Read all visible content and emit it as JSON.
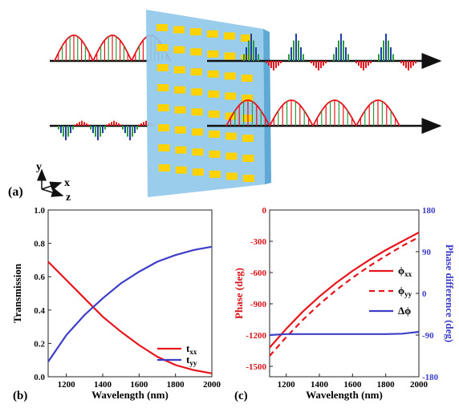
{
  "panel_a": {
    "label": "(a)",
    "axes": {
      "y": "y",
      "x": "x",
      "z": "z"
    },
    "colors": {
      "panel": "#8fc8ea",
      "block": "#ffd200",
      "red": "#e8141b",
      "green": "#2a9c3c",
      "blue": "#1f3ea6",
      "arrow": "#111111"
    }
  },
  "chart_data": [
    {
      "type": "line",
      "panel_label": "(b)",
      "xlabel": "Wavelength (nm)",
      "ylabel": "Transmission",
      "xlim": [
        1100,
        2000
      ],
      "ylim": [
        0.0,
        1.0
      ],
      "xticks": [
        "1200",
        "1400",
        "1600",
        "1800",
        "2000"
      ],
      "yticks": [
        "0.0",
        "0.2",
        "0.4",
        "0.6",
        "0.8",
        "1.0"
      ],
      "legend": {
        "placement": "bottom-right",
        "labels": [
          "t",
          "t"
        ],
        "subscripts": [
          "xx",
          "yy"
        ]
      },
      "x": [
        1100,
        1200,
        1300,
        1400,
        1500,
        1600,
        1700,
        1800,
        1900,
        2000
      ],
      "series": [
        {
          "color": "#e8141b",
          "values": [
            0.69,
            0.58,
            0.47,
            0.36,
            0.27,
            0.19,
            0.12,
            0.07,
            0.04,
            0.02
          ]
        },
        {
          "color": "#3d3dc8",
          "values": [
            0.09,
            0.25,
            0.37,
            0.47,
            0.56,
            0.63,
            0.69,
            0.73,
            0.76,
            0.78
          ]
        }
      ]
    },
    {
      "type": "line",
      "panel_label": "(c)",
      "xlabel": "Wavelength (nm)",
      "ylabel": "Phase (deg)",
      "y2label": "Phase difference (deg)",
      "xlim": [
        1100,
        2000
      ],
      "ylim": [
        -1600,
        0
      ],
      "y2lim": [
        -180,
        180
      ],
      "xticks": [
        "1200",
        "1400",
        "1600",
        "1800",
        "2000"
      ],
      "yticks": [
        "0",
        "-300",
        "-600",
        "-900",
        "-1200",
        "-1500"
      ],
      "y2ticks": [
        "180",
        "90",
        "0",
        "-90",
        "-180"
      ],
      "legend": {
        "placement": "right",
        "labels": [
          "ϕ",
          "ϕ",
          "Δϕ"
        ],
        "subscripts": [
          "xx",
          "yy",
          ""
        ]
      },
      "x": [
        1100,
        1200,
        1300,
        1400,
        1500,
        1600,
        1700,
        1800,
        1900,
        2000
      ],
      "series": [
        {
          "color": "#e8141b",
          "dash": "solid",
          "axis": "left",
          "values": [
            -1320,
            -1140,
            -975,
            -830,
            -700,
            -585,
            -480,
            -385,
            -300,
            -215
          ]
        },
        {
          "color": "#e8141b",
          "dash": "dashed",
          "axis": "left",
          "values": [
            -1400,
            -1220,
            -1055,
            -905,
            -770,
            -650,
            -540,
            -440,
            -345,
            -260
          ]
        },
        {
          "color": "#3d3dc8",
          "dash": "solid",
          "axis": "right",
          "values": [
            -90,
            -88,
            -88,
            -88,
            -88,
            -88,
            -88,
            -88,
            -87,
            -83
          ]
        }
      ]
    }
  ]
}
